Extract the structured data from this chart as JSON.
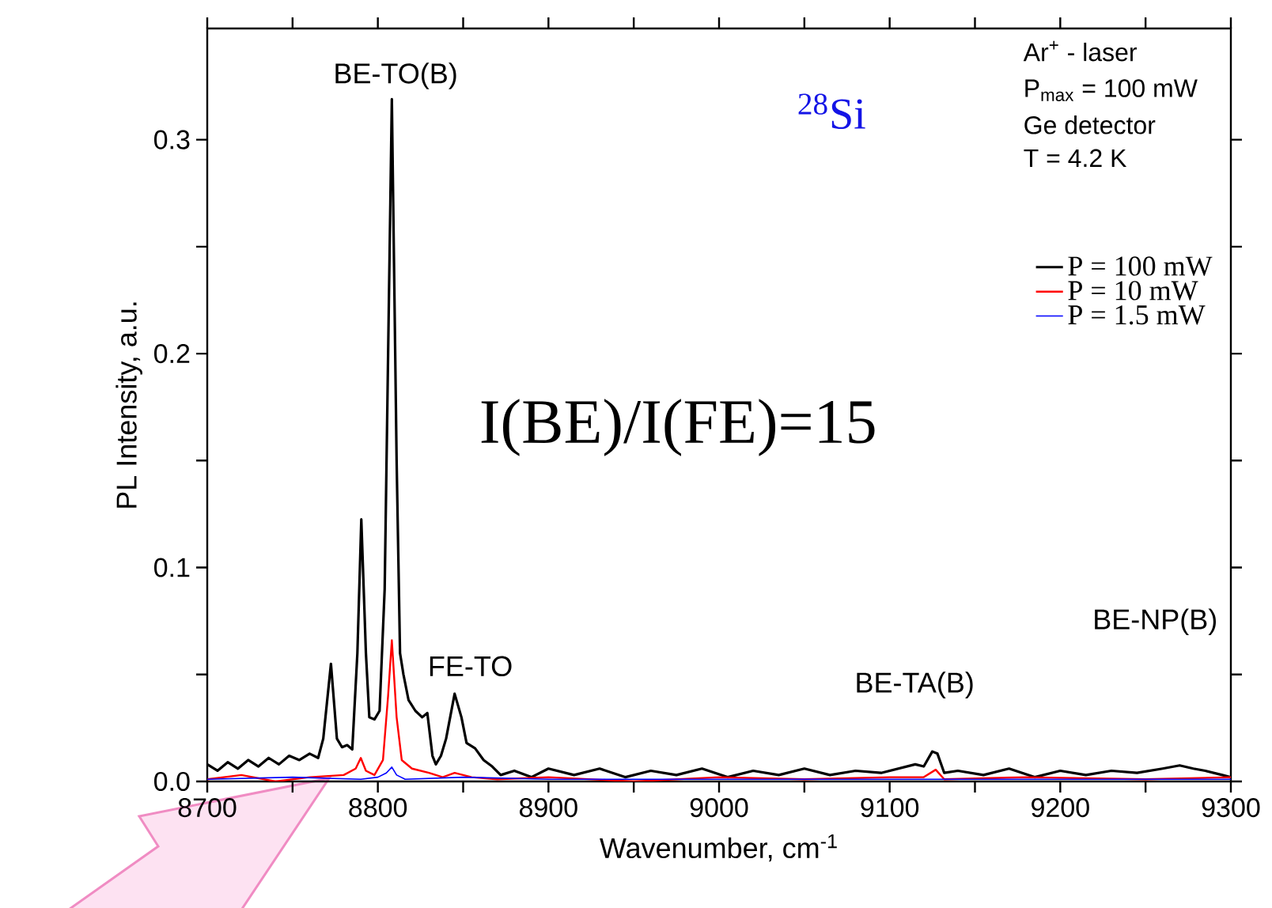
{
  "chart_data": {
    "type": "line",
    "xlabel": "Wavenumber, cm$^{-1}$",
    "ylabel": "PL Intensity, a.u.",
    "xlim": [
      8700,
      9300
    ],
    "ylim": [
      0,
      0.352
    ],
    "xticks": [
      8700,
      {
        "value": 8750,
        "label": null
      },
      8800,
      {
        "value": 8850,
        "label": null
      },
      8900,
      {
        "value": 8950,
        "label": null
      },
      9000,
      {
        "value": 9050,
        "label": null
      },
      9100,
      {
        "value": 9150,
        "label": null
      },
      9200,
      {
        "value": 9250,
        "label": null
      },
      9300
    ],
    "yticks": [
      {
        "value": 0,
        "label": "0.0"
      },
      {
        "value": 0.05,
        "label": null
      },
      0.1,
      {
        "value": 0.15,
        "label": null
      },
      0.2,
      {
        "value": 0.25,
        "label": null
      },
      0.3
    ],
    "grid": false,
    "legend": "top right",
    "marker": "none",
    "line_style": "solid",
    "series": [
      {
        "name": "P = 100 mW",
        "color": "#000000",
        "x": [
          8700,
          8706,
          8712,
          8718,
          8724,
          8730,
          8736,
          8742,
          8748,
          8754,
          8760,
          8765,
          8768,
          8772.5,
          8776,
          8779,
          8782,
          8785,
          8788,
          8790.3,
          8793,
          8795,
          8798,
          8801,
          8804,
          8808.2,
          8811,
          8813,
          8815,
          8818,
          8822,
          8826,
          8829,
          8832,
          8834,
          8837,
          8840,
          8845,
          8849,
          8852,
          8857,
          8862,
          8867,
          8872,
          8880,
          8890,
          8900,
          8915,
          8930,
          8945,
          8960,
          8975,
          8990,
          9005,
          9020,
          9035,
          9050,
          9065,
          9080,
          9095,
          9105,
          9115,
          9120,
          9125,
          9128,
          9132,
          9140,
          9155,
          9170,
          9185,
          9200,
          9215,
          9230,
          9245,
          9260,
          9270,
          9278,
          9285,
          9295,
          9300
        ],
        "values": [
          0.008,
          0.005,
          0.009,
          0.006,
          0.01,
          0.007,
          0.011,
          0.008,
          0.012,
          0.01,
          0.013,
          0.011,
          0.02,
          0.055,
          0.02,
          0.016,
          0.017,
          0.015,
          0.06,
          0.1225,
          0.06,
          0.03,
          0.029,
          0.033,
          0.09,
          0.319,
          0.15,
          0.06,
          0.05,
          0.038,
          0.033,
          0.03,
          0.032,
          0.012,
          0.008,
          0.012,
          0.02,
          0.041,
          0.03,
          0.018,
          0.0155,
          0.01,
          0.007,
          0.003,
          0.005,
          0.002,
          0.006,
          0.003,
          0.006,
          0.002,
          0.005,
          0.003,
          0.006,
          0.002,
          0.005,
          0.003,
          0.006,
          0.003,
          0.005,
          0.004,
          0.006,
          0.008,
          0.007,
          0.014,
          0.013,
          0.004,
          0.005,
          0.003,
          0.006,
          0.002,
          0.005,
          0.003,
          0.005,
          0.004,
          0.006,
          0.0075,
          0.006,
          0.005,
          0.003,
          0.002
        ]
      },
      {
        "name": "P = 10 mW",
        "color": "#ff0000",
        "x": [
          8700,
          8720,
          8740,
          8760,
          8780,
          8787,
          8790,
          8793,
          8798,
          8803,
          8806,
          8808.2,
          8811,
          8814,
          8820,
          8830,
          8838,
          8845,
          8855,
          8870,
          8900,
          8950,
          9000,
          9050,
          9100,
          9120,
          9127,
          9132,
          9180,
          9250,
          9300
        ],
        "values": [
          0.001,
          0.003,
          0.0,
          0.002,
          0.003,
          0.006,
          0.011,
          0.005,
          0.003,
          0.01,
          0.04,
          0.066,
          0.03,
          0.01,
          0.006,
          0.004,
          0.002,
          0.004,
          0.002,
          0.001,
          0.002,
          0.0,
          0.002,
          0.001,
          0.002,
          0.002,
          0.0055,
          0.001,
          0.002,
          0.001,
          0.002
        ]
      },
      {
        "name": "P = 1.5 mW",
        "color": "#0000ff",
        "x": [
          8700,
          8750,
          8790,
          8800,
          8805,
          8808.2,
          8811,
          8816,
          8850,
          8900,
          9000,
          9100,
          9200,
          9300
        ],
        "values": [
          0.001,
          0.002,
          0.001,
          0.002,
          0.004,
          0.0067,
          0.003,
          0.001,
          0.002,
          0.001,
          0.001,
          0.001,
          0.001,
          0.001
        ]
      }
    ],
    "annotations": [
      "I(BE)/I(FE)=15",
      "$^{28}$Si",
      "Ar$^{+}$ - laser",
      "P$_{max}$ = 100 mW",
      "Ge detector",
      "T = 4.2 K",
      "BE-TO(B)",
      "FE-TO",
      "BE-TA(B)",
      "BE-NP(B)"
    ]
  }
}
